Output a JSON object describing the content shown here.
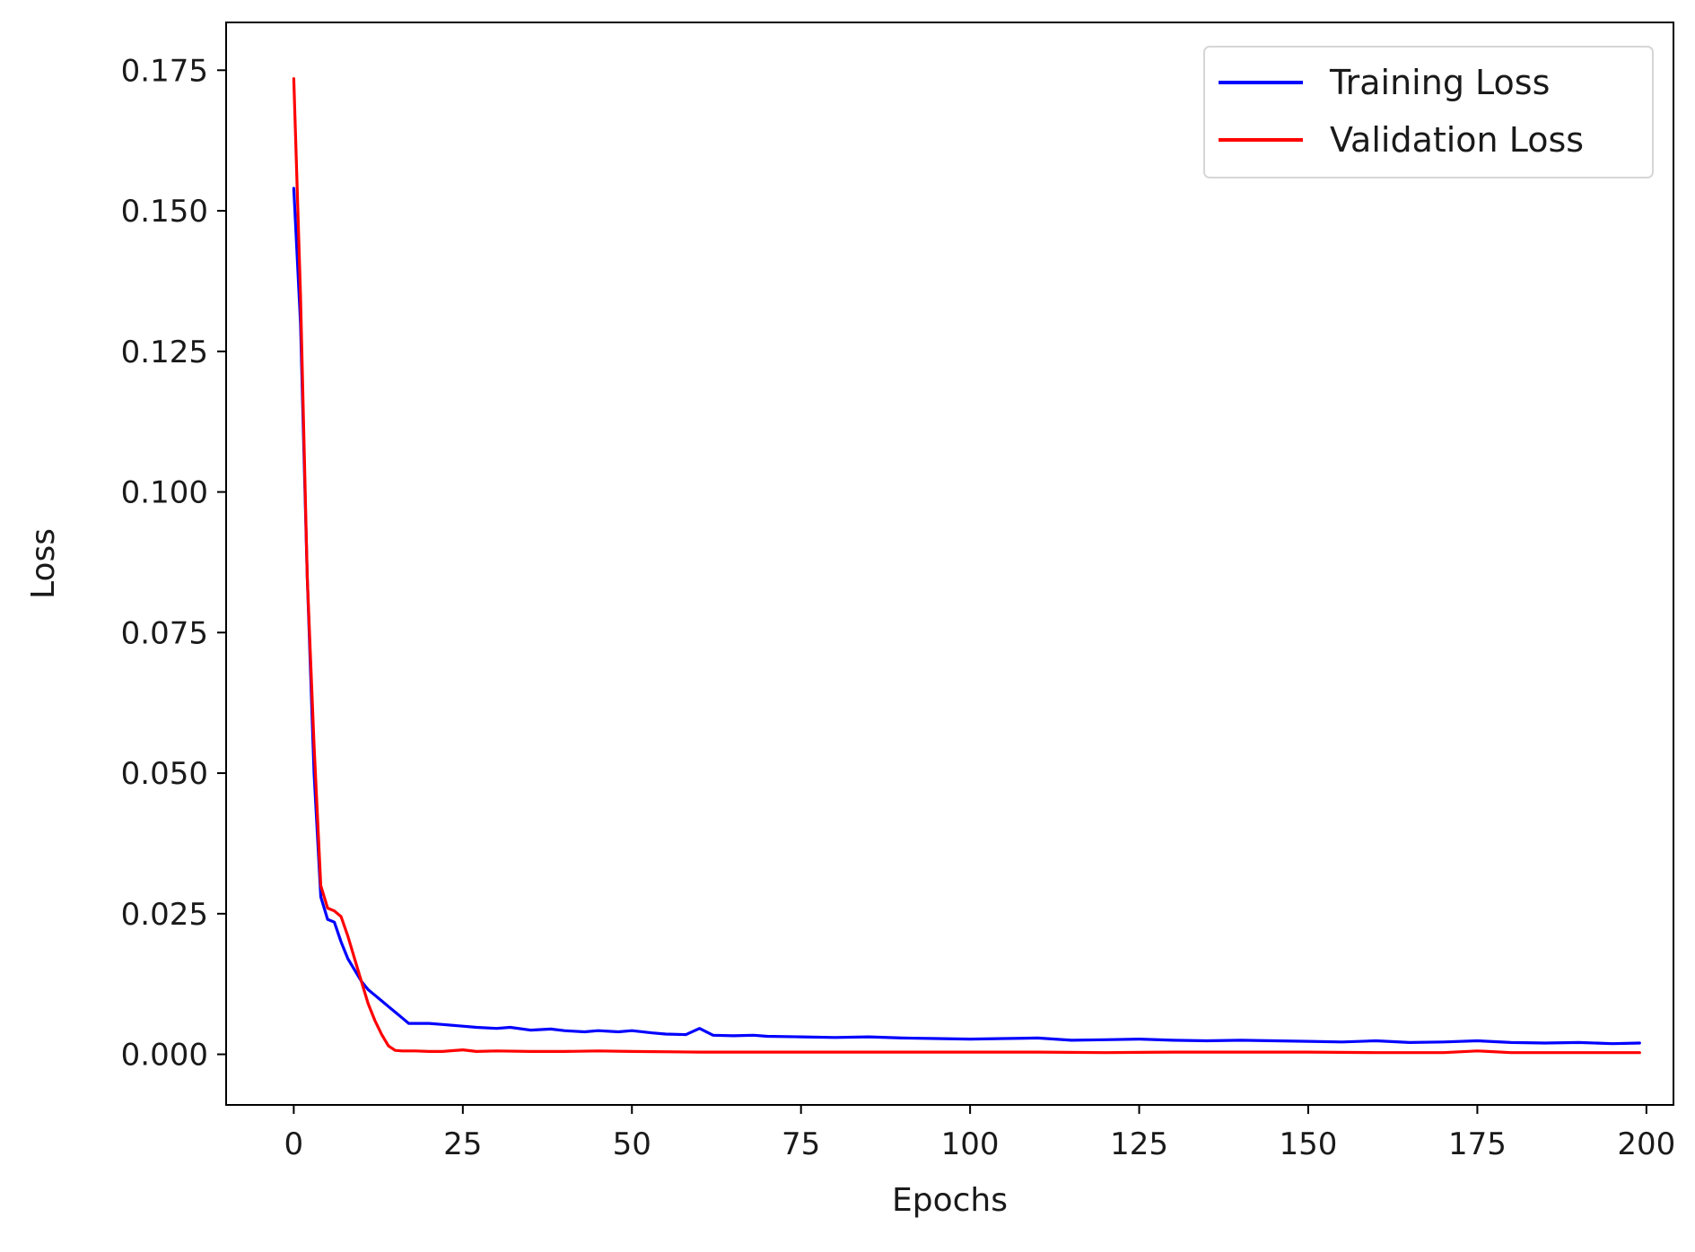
{
  "chart_data": {
    "type": "line",
    "title": "",
    "xlabel": "Epochs",
    "ylabel": "Loss",
    "xlim": [
      -10,
      204
    ],
    "ylim": [
      -0.009,
      0.1835
    ],
    "xticks": [
      0,
      25,
      50,
      75,
      100,
      125,
      150,
      175,
      200
    ],
    "yticks": [
      0.0,
      0.025,
      0.05,
      0.075,
      0.1,
      0.125,
      0.15,
      0.175
    ],
    "xtick_labels": [
      "0",
      "25",
      "50",
      "75",
      "100",
      "125",
      "150",
      "175",
      "200"
    ],
    "ytick_labels": [
      "0.000",
      "0.025",
      "0.050",
      "0.075",
      "0.100",
      "0.125",
      "0.150",
      "0.175"
    ],
    "grid": false,
    "legend_position": "top-right",
    "series": [
      {
        "name": "Training Loss",
        "color": "#0000ff",
        "x": [
          0,
          1,
          2,
          3,
          4,
          5,
          6,
          7,
          8,
          9,
          10,
          11,
          12,
          13,
          14,
          15,
          16,
          17,
          18,
          20,
          22,
          25,
          27,
          30,
          32,
          35,
          38,
          40,
          43,
          45,
          48,
          50,
          53,
          55,
          58,
          60,
          62,
          65,
          68,
          70,
          75,
          80,
          85,
          90,
          95,
          100,
          105,
          110,
          115,
          120,
          125,
          130,
          135,
          140,
          145,
          150,
          155,
          160,
          165,
          170,
          175,
          180,
          185,
          190,
          195,
          199
        ],
        "y": [
          0.154,
          0.13,
          0.085,
          0.05,
          0.028,
          0.024,
          0.0235,
          0.02,
          0.017,
          0.015,
          0.013,
          0.0115,
          0.0105,
          0.0095,
          0.0085,
          0.0075,
          0.0065,
          0.0055,
          0.0055,
          0.0055,
          0.0053,
          0.005,
          0.0048,
          0.0046,
          0.0048,
          0.0043,
          0.0045,
          0.0042,
          0.004,
          0.0042,
          0.004,
          0.0042,
          0.0038,
          0.0036,
          0.0035,
          0.0046,
          0.0034,
          0.0033,
          0.0034,
          0.0032,
          0.0031,
          0.003,
          0.0031,
          0.0029,
          0.0028,
          0.0027,
          0.0028,
          0.0029,
          0.0025,
          0.0026,
          0.0027,
          0.0025,
          0.0024,
          0.0025,
          0.0024,
          0.0023,
          0.0022,
          0.0024,
          0.0021,
          0.0022,
          0.0024,
          0.0021,
          0.002,
          0.0021,
          0.0019,
          0.002
        ]
      },
      {
        "name": "Validation Loss",
        "color": "#ff0000",
        "x": [
          0,
          1,
          2,
          3,
          4,
          5,
          6,
          7,
          8,
          9,
          10,
          11,
          12,
          13,
          14,
          15,
          16,
          17,
          18,
          20,
          22,
          25,
          27,
          30,
          35,
          40,
          45,
          50,
          60,
          70,
          80,
          90,
          100,
          110,
          120,
          130,
          140,
          150,
          160,
          170,
          175,
          180,
          190,
          199
        ],
        "y": [
          0.1735,
          0.135,
          0.085,
          0.055,
          0.03,
          0.026,
          0.0255,
          0.0245,
          0.021,
          0.017,
          0.013,
          0.009,
          0.006,
          0.0035,
          0.0015,
          0.0007,
          0.0006,
          0.0006,
          0.0006,
          0.0005,
          0.0005,
          0.0008,
          0.0005,
          0.0006,
          0.0005,
          0.0005,
          0.0006,
          0.0005,
          0.0004,
          0.0004,
          0.0004,
          0.0004,
          0.0004,
          0.0004,
          0.0003,
          0.0004,
          0.0004,
          0.0004,
          0.0003,
          0.0003,
          0.0006,
          0.0003,
          0.0003,
          0.0003
        ]
      }
    ]
  }
}
